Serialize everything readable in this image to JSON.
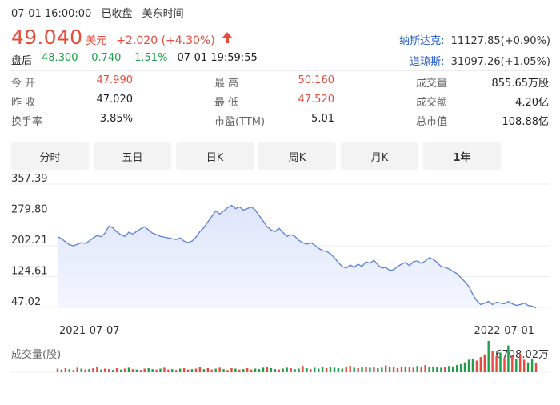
{
  "header": {
    "timestamp": "07-01 16:00:00",
    "status": "已收盘",
    "timezone": "美东时间",
    "price": "49.040",
    "currency": "美元",
    "change": "+2.020 (+4.30%)",
    "direction_icon": "up-arrow-icon",
    "up_color": "#e64b3c",
    "down_color": "#1f9e4a",
    "link_color": "#1a57c8"
  },
  "after_hours": {
    "label": "盘后",
    "price": "48.300",
    "change": "-0.740",
    "pct": "-1.51%",
    "time": "07-01 19:59:55"
  },
  "indices": [
    {
      "name": "纳斯达克:",
      "value": "11127.85(+0.90%)"
    },
    {
      "name": "道琼斯:",
      "value": "31097.26(+1.05%)"
    }
  ],
  "stats": {
    "open_label": "今开",
    "open": "47.990",
    "prev_label": "昨收",
    "prev": "47.020",
    "turnover_rate_label": "换手率",
    "turnover_rate": "3.85%",
    "high_label": "最高",
    "high": "50.160",
    "low_label": "最低",
    "low": "47.520",
    "pe_label": "市盈(TTM)",
    "pe": "5.01",
    "volume_label": "成交量",
    "volume": "855.65万股",
    "amount_label": "成交额",
    "amount": "4.20亿",
    "mktcap_label": "总市值",
    "mktcap": "108.88亿"
  },
  "tabs": [
    {
      "label": "分时",
      "active": false
    },
    {
      "label": "五日",
      "active": false
    },
    {
      "label": "日K",
      "active": false
    },
    {
      "label": "周K",
      "active": false
    },
    {
      "label": "月K",
      "active": false
    },
    {
      "label": "1年",
      "active": true
    }
  ],
  "chart_data": {
    "type": "area",
    "y_ticks": [
      "357.39",
      "279.80",
      "202.21",
      "124.61",
      "47.02"
    ],
    "ylim": [
      47.02,
      357.39
    ],
    "x_start_label": "2021-07-07",
    "x_end_label": "2022-07-01",
    "line_color": "#5a7fd6",
    "fill_color": "#dfe6fb",
    "grid": true,
    "series": [
      {
        "values": [
          225,
          220,
          212,
          205,
          202,
          206,
          210,
          208,
          214,
          222,
          228,
          225,
          234,
          252,
          247,
          237,
          230,
          226,
          236,
          232,
          238,
          245,
          250,
          242,
          234,
          230,
          226,
          224,
          222,
          220,
          218,
          222,
          214,
          210,
          214,
          224,
          238,
          248,
          262,
          276,
          290,
          282,
          290,
          298,
          304,
          296,
          300,
          292,
          296,
          300,
          292,
          278,
          264,
          250,
          242,
          238,
          246,
          236,
          226,
          230,
          226,
          216,
          210,
          206,
          210,
          204,
          196,
          190,
          188,
          182,
          172,
          160,
          150,
          146,
          154,
          148,
          156,
          150,
          162,
          158,
          166,
          154,
          146,
          148,
          140,
          142,
          150,
          156,
          160,
          152,
          162,
          164,
          158,
          164,
          172,
          168,
          160,
          150,
          148,
          144,
          138,
          132,
          122,
          112,
          100,
          80,
          64,
          54,
          58,
          62,
          54,
          60,
          58,
          56,
          62,
          56,
          52,
          54,
          58,
          52,
          50,
          46
        ]
      }
    ],
    "volume_label": "成交量(股)",
    "volume_max_label": "6708.02万",
    "volume_up_color": "#e64b3c",
    "volume_down_color": "#1f9e4a",
    "volume_values": [
      8,
      6,
      9,
      7,
      5,
      10,
      8,
      6,
      7,
      9,
      12,
      6,
      8,
      7,
      5,
      9,
      6,
      8,
      10,
      7,
      6,
      5,
      8,
      9,
      7,
      6,
      8,
      10,
      6,
      7,
      5,
      8,
      9,
      6,
      7,
      8,
      12,
      7,
      9,
      6,
      8,
      10,
      7,
      5,
      9,
      8,
      6,
      7,
      9,
      6,
      8,
      7,
      10,
      12,
      9,
      7,
      6,
      8,
      10,
      9,
      7,
      8,
      14,
      9,
      7,
      10,
      8,
      12,
      9,
      11,
      10,
      9,
      8,
      12,
      14,
      10,
      9,
      11,
      13,
      10,
      12,
      9,
      10,
      15,
      12,
      11,
      9,
      13,
      12,
      11,
      10,
      14,
      12,
      16,
      11,
      13,
      12,
      10,
      11,
      14,
      13,
      16,
      18,
      22,
      28,
      30,
      26,
      34,
      40,
      70,
      48,
      36,
      44,
      32,
      60,
      38,
      30,
      42,
      28,
      22,
      30,
      20
    ],
    "volume_directions": [
      1,
      0,
      1,
      0,
      1,
      1,
      0,
      1,
      0,
      1,
      1,
      0,
      1,
      1,
      0,
      1,
      0,
      1,
      0,
      1,
      0,
      1,
      1,
      0,
      0,
      1,
      0,
      1,
      1,
      0,
      1,
      0,
      1,
      1,
      0,
      1,
      1,
      0,
      1,
      1,
      0,
      1,
      0,
      1,
      1,
      0,
      1,
      0,
      1,
      1,
      0,
      0,
      0,
      1,
      0,
      0,
      1,
      0,
      0,
      1,
      0,
      0,
      1,
      0,
      1,
      0,
      0,
      0,
      1,
      0,
      0,
      0,
      0,
      1,
      1,
      0,
      1,
      0,
      1,
      0,
      1,
      0,
      0,
      1,
      0,
      1,
      1,
      1,
      0,
      1,
      1,
      0,
      1,
      1,
      0,
      0,
      0,
      0,
      1,
      0,
      0,
      0,
      0,
      0,
      0,
      0,
      1,
      1,
      1,
      0,
      1,
      1,
      0,
      1,
      0,
      1,
      0,
      1,
      1,
      0,
      0,
      1
    ]
  }
}
